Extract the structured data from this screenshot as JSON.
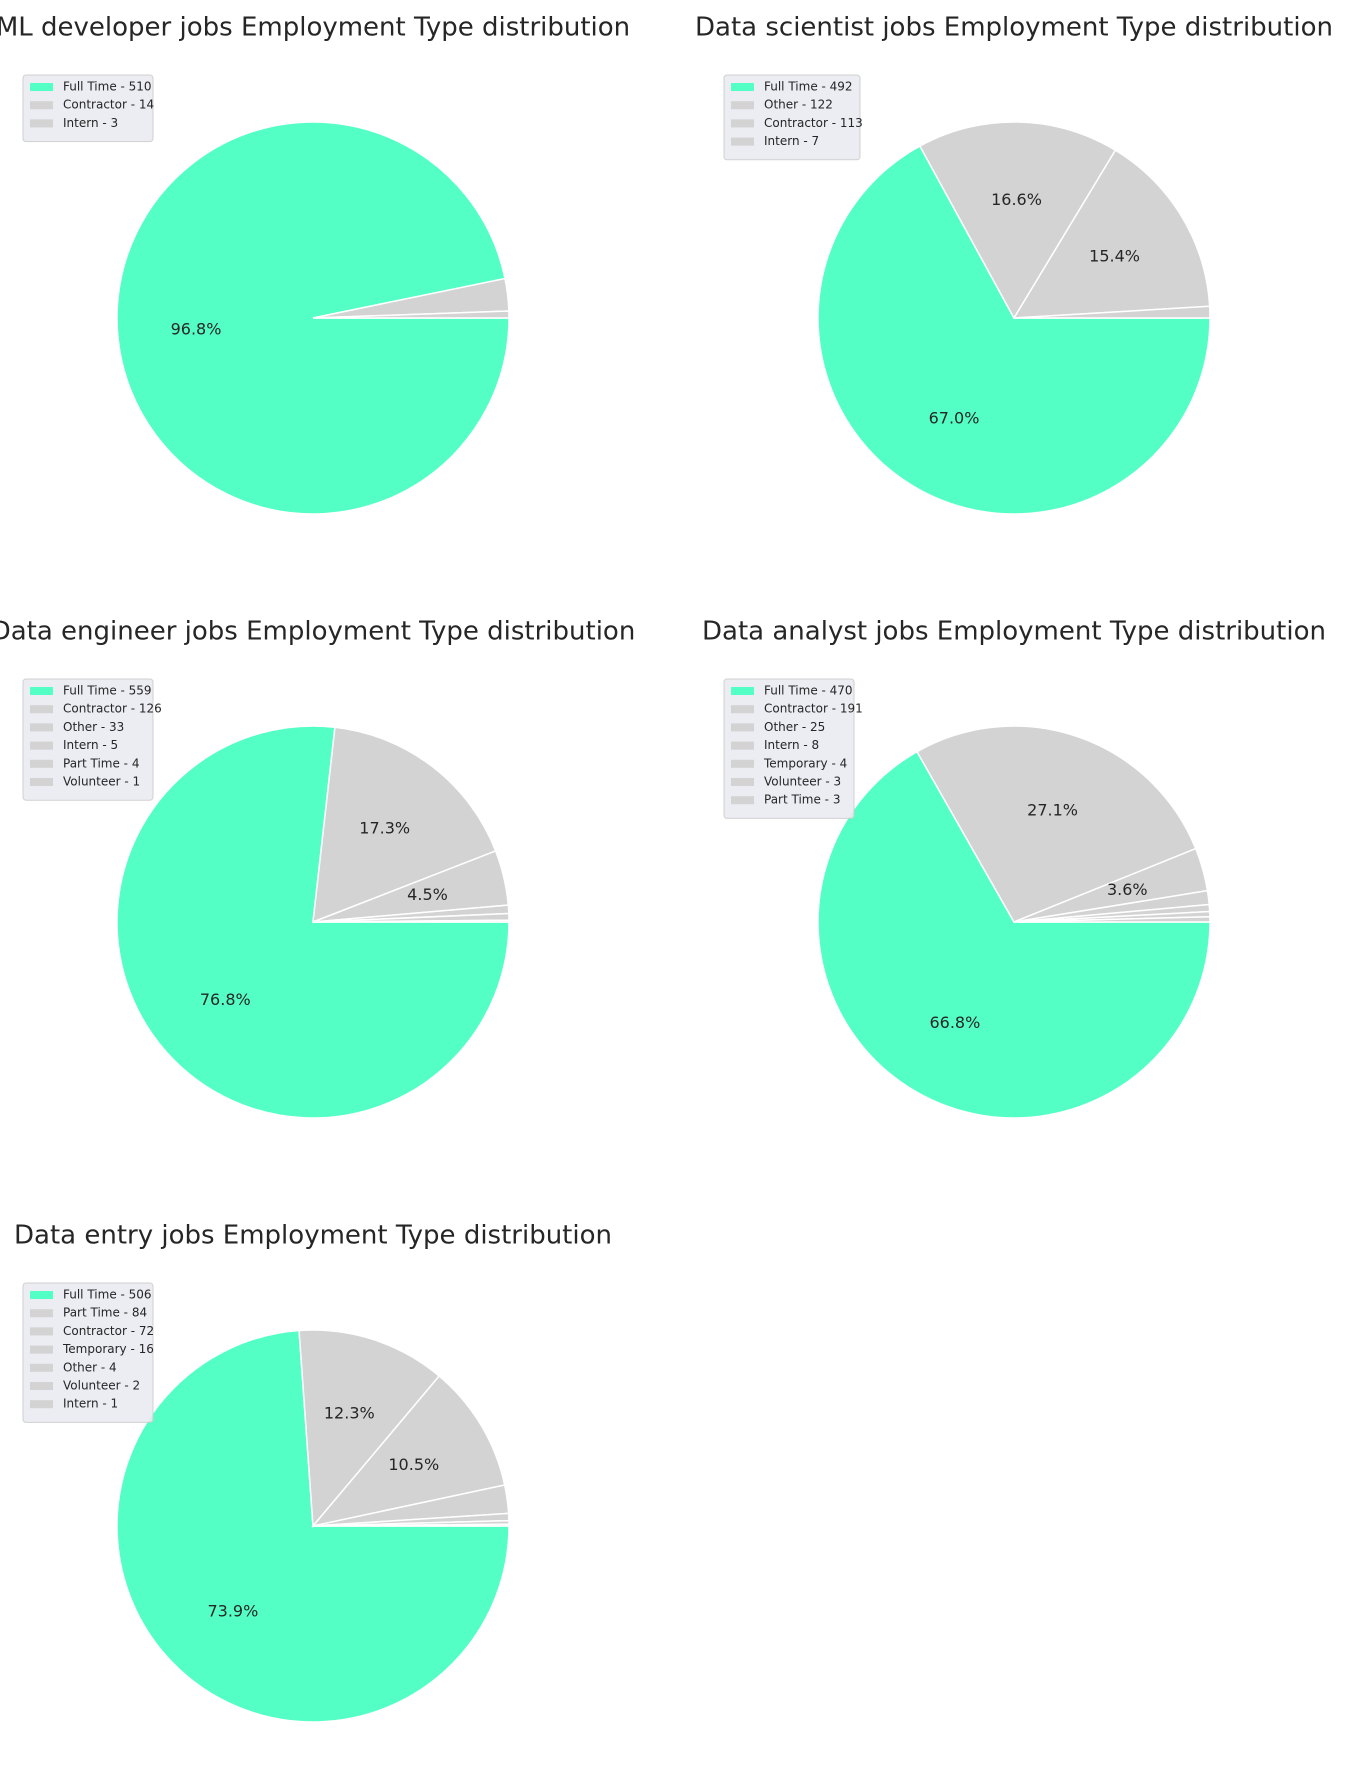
{
  "colors": {
    "highlight": "#54ffc6",
    "other": "#d3d3d3",
    "edge": "#ffffff",
    "legend_bg": "#eaeaf2",
    "text": "#262626"
  },
  "chart_data": [
    {
      "type": "pie",
      "title": "ML developer jobs Employment Type distribution",
      "labels": [
        "Full Time - 510",
        "Contractor - 14",
        "Intern - 3"
      ],
      "values": [
        510,
        14,
        3
      ],
      "autopct_shown": [
        "96.8%",
        "",
        ""
      ],
      "legend": "top-left"
    },
    {
      "type": "pie",
      "title": "Data scientist jobs Employment Type distribution",
      "labels": [
        "Full Time - 492",
        "Other - 122",
        "Contractor - 113",
        "Intern - 7"
      ],
      "values": [
        492,
        122,
        113,
        7
      ],
      "autopct_shown": [
        "67.0%",
        "16.6%",
        "15.4%",
        ""
      ],
      "legend": "top-left"
    },
    {
      "type": "pie",
      "title": "Data engineer jobs Employment Type distribution",
      "labels": [
        "Full Time - 559",
        "Contractor - 126",
        "Other - 33",
        "Intern - 5",
        "Part Time - 4",
        "Volunteer - 1"
      ],
      "values": [
        559,
        126,
        33,
        5,
        4,
        1
      ],
      "autopct_shown": [
        "76.8%",
        "17.3%",
        "4.5%",
        "",
        "",
        ""
      ],
      "legend": "top-left"
    },
    {
      "type": "pie",
      "title": "Data analyst jobs Employment Type distribution",
      "labels": [
        "Full Time - 470",
        "Contractor - 191",
        "Other - 25",
        "Intern - 8",
        "Temporary - 4",
        "Volunteer - 3",
        "Part Time - 3"
      ],
      "values": [
        470,
        191,
        25,
        8,
        4,
        3,
        3
      ],
      "autopct_shown": [
        "66.8%",
        "27.1%",
        "3.6%",
        "",
        "",
        "",
        ""
      ],
      "legend": "top-left"
    },
    {
      "type": "pie",
      "title": "Data entry jobs Employment Type distribution",
      "labels": [
        "Full Time - 506",
        "Part Time - 84",
        "Contractor - 72",
        "Temporary - 16",
        "Other - 4",
        "Volunteer - 2",
        "Intern - 1"
      ],
      "values": [
        506,
        84,
        72,
        16,
        4,
        2,
        1
      ],
      "autopct_shown": [
        "73.9%",
        "12.3%",
        "10.5%",
        "",
        "",
        "",
        ""
      ],
      "legend": "top-left"
    }
  ]
}
